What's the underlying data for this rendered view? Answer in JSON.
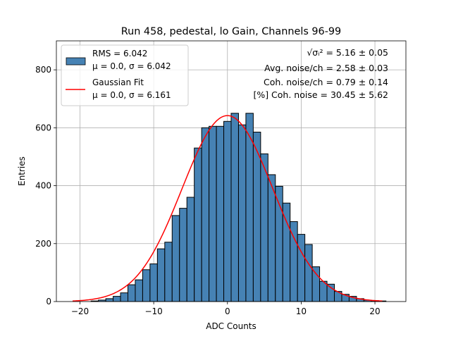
{
  "chart_data": {
    "type": "bar",
    "title": "Run 458, pedestal, lo Gain, Channels 96-99",
    "xlabel": "ADC Counts",
    "ylabel": "Entries",
    "xlim": [
      -23.2,
      24.2
    ],
    "ylim": [
      0,
      900
    ],
    "xticks": [
      -20,
      -10,
      0,
      10,
      20
    ],
    "xtick_labels": [
      "−20",
      "−10",
      "0",
      "10",
      "20"
    ],
    "yticks": [
      0,
      200,
      400,
      600,
      800
    ],
    "grid": true,
    "legend_position": "top-left",
    "bin_width": 1,
    "bins": [
      {
        "x": -18,
        "y": 2
      },
      {
        "x": -17,
        "y": 5
      },
      {
        "x": -16,
        "y": 10
      },
      {
        "x": -15,
        "y": 18
      },
      {
        "x": -14,
        "y": 30
      },
      {
        "x": -13,
        "y": 58
      },
      {
        "x": -12,
        "y": 75
      },
      {
        "x": -11,
        "y": 110
      },
      {
        "x": -10,
        "y": 130
      },
      {
        "x": -9,
        "y": 182
      },
      {
        "x": -8,
        "y": 205
      },
      {
        "x": -7,
        "y": 297
      },
      {
        "x": -6,
        "y": 322
      },
      {
        "x": -5,
        "y": 360
      },
      {
        "x": -4,
        "y": 530
      },
      {
        "x": -3,
        "y": 600
      },
      {
        "x": -2,
        "y": 605
      },
      {
        "x": -1,
        "y": 605
      },
      {
        "x": 0,
        "y": 622
      },
      {
        "x": 1,
        "y": 650
      },
      {
        "x": 2,
        "y": 610
      },
      {
        "x": 3,
        "y": 650
      },
      {
        "x": 4,
        "y": 585
      },
      {
        "x": 5,
        "y": 510
      },
      {
        "x": 6,
        "y": 438
      },
      {
        "x": 7,
        "y": 398
      },
      {
        "x": 8,
        "y": 340
      },
      {
        "x": 9,
        "y": 276
      },
      {
        "x": 10,
        "y": 232
      },
      {
        "x": 11,
        "y": 197
      },
      {
        "x": 12,
        "y": 120
      },
      {
        "x": 13,
        "y": 70
      },
      {
        "x": 14,
        "y": 60
      },
      {
        "x": 15,
        "y": 35
      },
      {
        "x": 16,
        "y": 25
      },
      {
        "x": 17,
        "y": 18
      },
      {
        "x": 18,
        "y": 10
      },
      {
        "x": 19,
        "y": 5
      },
      {
        "x": 20,
        "y": 3
      },
      {
        "x": 21,
        "y": 2
      }
    ],
    "fit": {
      "amplitude": 642,
      "mean": 0.0,
      "sigma": 6.161,
      "x_range": [
        -21,
        21
      ]
    },
    "legend": [
      {
        "label": "RMS = 6.042",
        "sublabel": "μ = 0.0, σ = 6.042",
        "kind": "patch",
        "color": "#4682b4"
      },
      {
        "label": "Gaussian Fit",
        "sublabel": "μ = 0.0, σ = 6.161",
        "kind": "line",
        "color": "#ff0000"
      }
    ],
    "annotations": [
      {
        "prefix": "√σᵢ²",
        "text": " = 5.16 ± 0.05"
      },
      {
        "text": "Avg. noise/ch = 2.58 ± 0.03"
      },
      {
        "text": "Coh. noise/ch = 0.79 ± 0.14"
      },
      {
        "text": "[%] Coh. noise = 30.45 ± 5.62"
      }
    ],
    "colors": {
      "bar": "#4682b4",
      "bar_edge": "#000000",
      "fit": "#ff0000",
      "grid": "#b0b0b0"
    }
  }
}
